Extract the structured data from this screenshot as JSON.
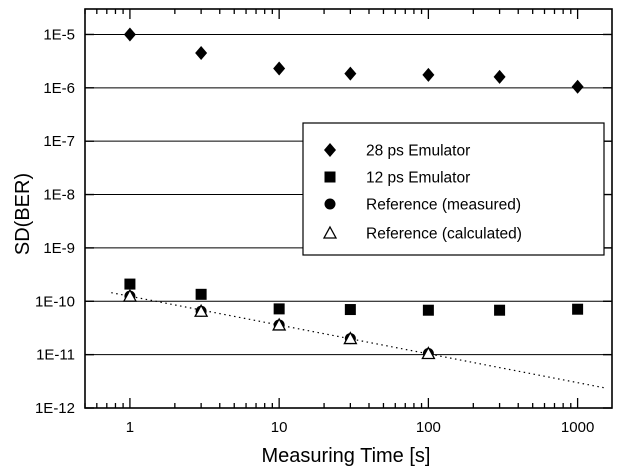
{
  "chart_data": {
    "type": "scatter",
    "xlabel": "Measuring Time [s]",
    "ylabel": "SD(BER)",
    "x_scale": "log",
    "y_scale": "log",
    "xlim": [
      0.5,
      1700
    ],
    "ylim": [
      1e-12,
      3e-05
    ],
    "x_ticks": [
      {
        "value": 1,
        "label": "1"
      },
      {
        "value": 10,
        "label": "10"
      },
      {
        "value": 100,
        "label": "100"
      },
      {
        "value": 1000,
        "label": "1000"
      }
    ],
    "y_ticks": [
      {
        "value": 1e-05,
        "label": "1E-5"
      },
      {
        "value": 1e-06,
        "label": "1E-6"
      },
      {
        "value": 1e-07,
        "label": "1E-7"
      },
      {
        "value": 1e-08,
        "label": "1E-8"
      },
      {
        "value": 1e-09,
        "label": "1E-9"
      },
      {
        "value": 1e-10,
        "label": "1E-10"
      },
      {
        "value": 1e-11,
        "label": "1E-11"
      },
      {
        "value": 1e-12,
        "label": "1E-12"
      }
    ],
    "grid": "horizontal",
    "legend_position": "center-right",
    "series": [
      {
        "name": "28 ps Emulator",
        "marker": "diamond",
        "points": [
          [
            1,
            1e-05
          ],
          [
            3,
            4.5e-06
          ],
          [
            10,
            2.3e-06
          ],
          [
            30,
            1.85e-06
          ],
          [
            100,
            1.75e-06
          ],
          [
            300,
            1.6e-06
          ],
          [
            1000,
            1.05e-06
          ]
        ]
      },
      {
        "name": "12 ps Emulator",
        "marker": "square",
        "points": [
          [
            1,
            2.1e-10
          ],
          [
            3,
            1.35e-10
          ],
          [
            10,
            7.2e-11
          ],
          [
            30,
            7e-11
          ],
          [
            100,
            6.8e-11
          ],
          [
            300,
            6.8e-11
          ],
          [
            1000,
            7.1e-11
          ]
        ]
      },
      {
        "name": "Reference (measured)",
        "marker": "circle",
        "points": [
          [
            1,
            1.25e-10
          ],
          [
            3,
            6.5e-11
          ],
          [
            10,
            3.6e-11
          ],
          [
            30,
            2e-11
          ],
          [
            100,
            1.05e-11
          ]
        ]
      },
      {
        "name": "Reference (calculated)",
        "marker": "triangle",
        "points": [
          [
            1,
            1.25e-10
          ],
          [
            3,
            6.5e-11
          ],
          [
            10,
            3.6e-11
          ],
          [
            30,
            2e-11
          ],
          [
            100,
            1.05e-11
          ]
        ]
      }
    ],
    "fit_line": {
      "style": "dotted",
      "points": [
        [
          0.75,
          1.45e-10
        ],
        [
          1500,
          2.4e-12
        ]
      ]
    }
  }
}
